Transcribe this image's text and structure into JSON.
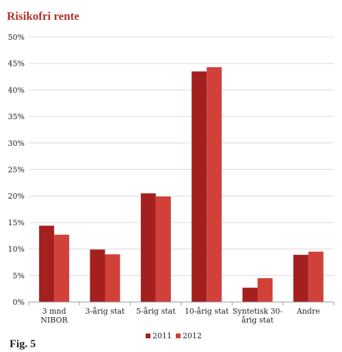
{
  "title": "Risikofri rente",
  "figure_label": "Fig. 5",
  "colors": {
    "title": "#b5302a",
    "series_2011": "#a3201f",
    "series_2012": "#d2403a",
    "grid": "#d9d9d9",
    "axis": "#999999"
  },
  "chart_data": {
    "type": "bar",
    "title": "Risikofri rente",
    "xlabel": "",
    "ylabel": "",
    "ylim": [
      0,
      50
    ],
    "yticks": [
      0,
      5,
      10,
      15,
      20,
      25,
      30,
      35,
      40,
      45,
      50
    ],
    "ytick_labels": [
      "0%",
      "5%",
      "10%",
      "15%",
      "20%",
      "25%",
      "30%",
      "35%",
      "40%",
      "45%",
      "50%"
    ],
    "grid": true,
    "legend_position": "bottom-center",
    "categories": [
      [
        "3 mnd",
        "NIBOR"
      ],
      [
        "3-årig stat"
      ],
      [
        "5-årig stat"
      ],
      [
        "10-årig stat"
      ],
      [
        "Syntetisk 30-",
        "årig stat"
      ],
      [
        "Andre"
      ]
    ],
    "series": [
      {
        "name": "2011",
        "values": [
          14.4,
          9.9,
          20.5,
          43.5,
          2.7,
          8.9
        ]
      },
      {
        "name": "2012",
        "values": [
          12.7,
          9.0,
          19.9,
          44.3,
          4.5,
          9.5
        ]
      }
    ]
  }
}
